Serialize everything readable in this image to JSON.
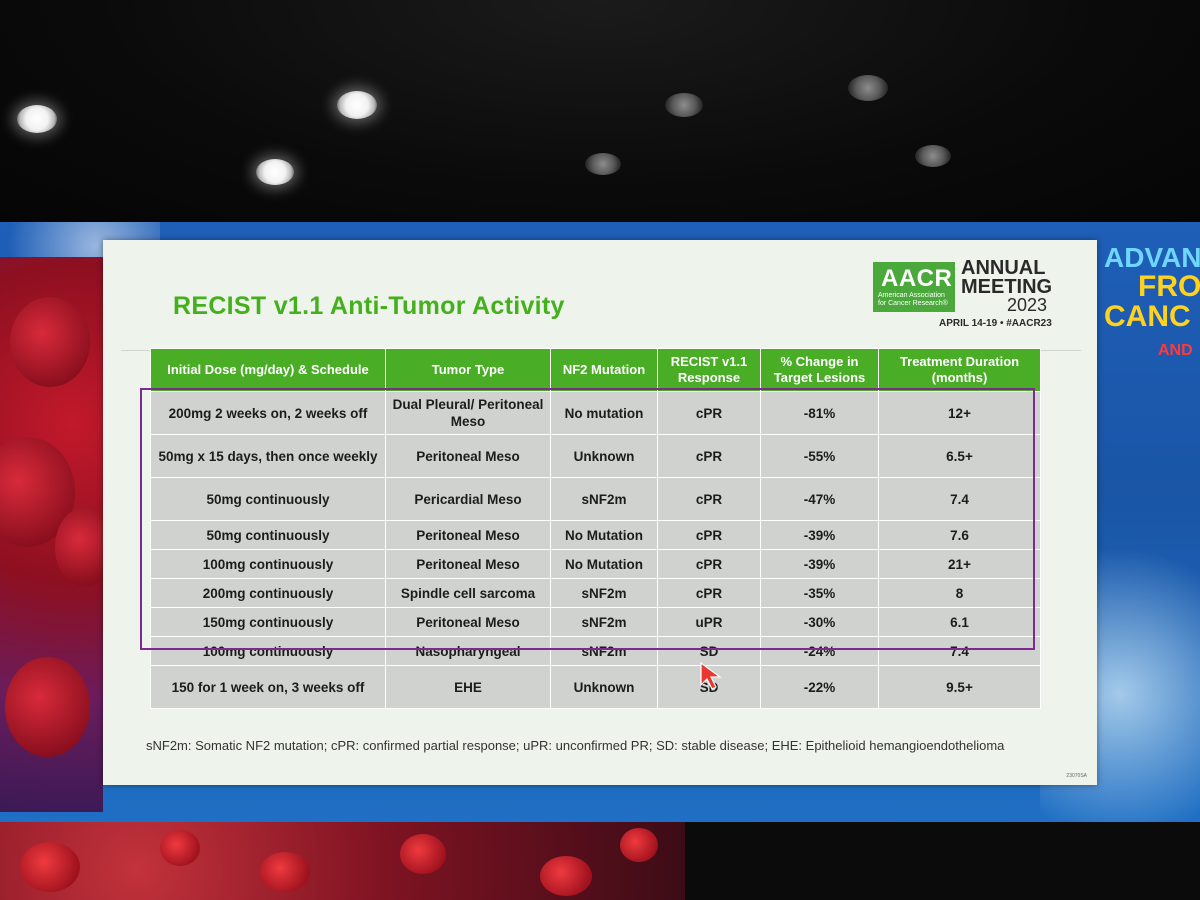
{
  "slide": {
    "title": "RECIST v1.1 Anti-Tumor Activity",
    "logo": {
      "brand": "AACR",
      "sub": "American Association for Cancer Research®",
      "annual": "ANNUAL",
      "meeting": "MEETING",
      "year": "2023",
      "date": "APRIL 14-19 • #AACR23"
    },
    "table": {
      "headers": [
        "Initial Dose (mg/day) & Schedule",
        "Tumor Type",
        "NF2 Mutation",
        "RECIST v1.1 Response",
        "% Change in Target Lesions",
        "Treatment Duration (months)"
      ],
      "rows": [
        [
          "200mg 2 weeks on, 2 weeks off",
          "Dual Pleural/ Peritoneal Meso",
          "No mutation",
          "cPR",
          "-81%",
          "12+"
        ],
        [
          "50mg x 15 days, then once weekly",
          "Peritoneal Meso",
          "Unknown",
          "cPR",
          "-55%",
          "6.5+"
        ],
        [
          "50mg continuously",
          "Pericardial Meso",
          "sNF2m",
          "cPR",
          "-47%",
          "7.4"
        ],
        [
          "50mg continuously",
          "Peritoneal Meso",
          "No Mutation",
          "cPR",
          "-39%",
          "7.6"
        ],
        [
          "100mg continuously",
          "Peritoneal Meso",
          "No Mutation",
          "cPR",
          "-39%",
          "21+"
        ],
        [
          "200mg continuously",
          "Spindle cell sarcoma",
          "sNF2m",
          "cPR",
          "-35%",
          "8"
        ],
        [
          "150mg continuously",
          "Peritoneal Meso",
          "sNF2m",
          "uPR",
          "-30%",
          "6.1"
        ],
        [
          "100mg continuously",
          "Nasopharyngeal",
          "sNF2m",
          "SD",
          "-24%",
          "7.4"
        ],
        [
          "150 for 1 week on, 3 weeks off",
          "EHE",
          "Unknown",
          "SD",
          "-22%",
          "9.5+"
        ]
      ]
    },
    "footnote": "sNF2m: Somatic NF2 mutation; cPR: confirmed partial response; uPR: unconfirmed PR; SD: stable disease; EHE: Epithelioid hemangioendothelioma",
    "tiny_code": "23070SA"
  },
  "backdrop": {
    "line1": "ADVAN",
    "line2": "FRO",
    "line3": "CANC",
    "line4": "AND"
  },
  "colors": {
    "title_green": "#45b01d",
    "header_green": "#49ad26",
    "highlight_purple": "#7b2a8f",
    "cell_gray": "#d0d2d0",
    "cursor_red": "#e8382f"
  }
}
